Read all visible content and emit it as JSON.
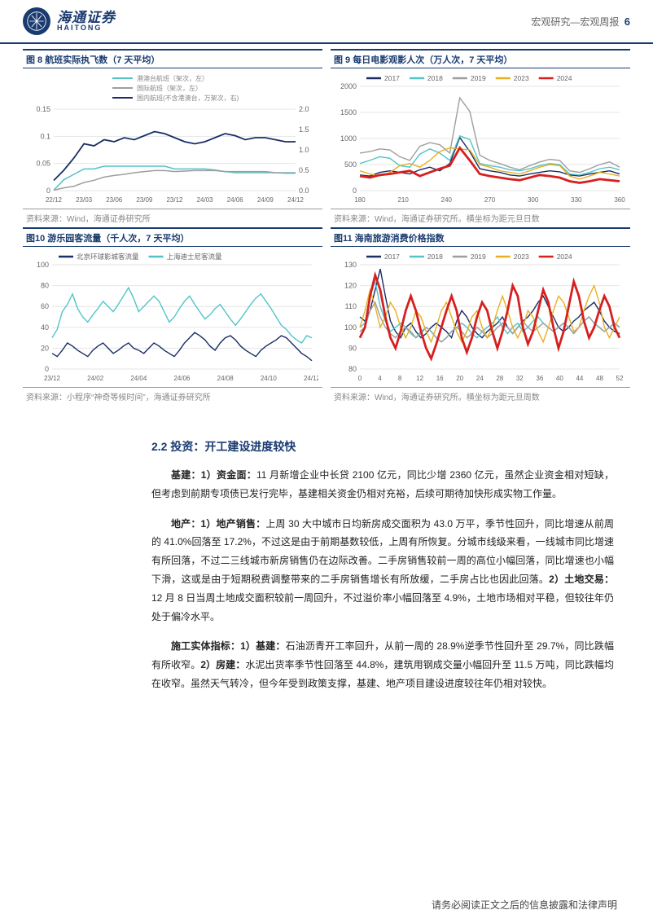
{
  "header": {
    "brand_cn": "海通证券",
    "brand_en": "HAITONG",
    "right_text": "宏观研究—宏观周报",
    "page_num": "6"
  },
  "charts": {
    "c8": {
      "title": "图 8  航班实际执飞数（7 天平均）",
      "source": "资料来源：Wind，海通证券研究所",
      "legend": [
        {
          "label": "港澳台航班（架次，左）",
          "color": "#52c4c9"
        },
        {
          "label": "国际航班（架次，左）",
          "color": "#9e9e9e"
        },
        {
          "label": "国内航班(不含港澳台，万架次，右)",
          "color": "#1a2e66"
        }
      ],
      "y_left": {
        "min": 0,
        "max": 0.15,
        "ticks": [
          0,
          0.05,
          0.1,
          0.15
        ]
      },
      "y_right": {
        "min": 0,
        "max": 2.0,
        "ticks": [
          0,
          0.5,
          1.0,
          1.5,
          2.0
        ]
      },
      "x_labels": [
        "22/12",
        "23/03",
        "23/06",
        "23/09",
        "23/12",
        "24/03",
        "24/06",
        "24/09",
        "24/12"
      ],
      "series": {
        "hk": [
          0.001,
          0.02,
          0.03,
          0.04,
          0.04,
          0.045,
          0.045,
          0.045,
          0.045,
          0.045,
          0.045,
          0.045,
          0.04,
          0.04,
          0.04,
          0.04,
          0.038,
          0.035,
          0.033,
          0.033,
          0.033,
          0.033,
          0.033,
          0.033,
          0.033
        ],
        "intl": [
          0.001,
          0.005,
          0.008,
          0.015,
          0.019,
          0.025,
          0.028,
          0.03,
          0.033,
          0.035,
          0.037,
          0.037,
          0.035,
          0.036,
          0.037,
          0.037,
          0.037,
          0.035,
          0.035,
          0.035,
          0.035,
          0.035,
          0.033,
          0.032,
          0.032
        ],
        "dom_right": [
          0.25,
          0.5,
          0.8,
          1.15,
          1.1,
          1.25,
          1.2,
          1.3,
          1.25,
          1.35,
          1.45,
          1.4,
          1.3,
          1.2,
          1.15,
          1.2,
          1.3,
          1.4,
          1.35,
          1.25,
          1.3,
          1.3,
          1.25,
          1.2,
          1.2
        ]
      },
      "bg": "#ffffff",
      "grid": "#e6e6e6"
    },
    "c9": {
      "title": "图 9  每日电影观影人次（万人次，7 天平均）",
      "source": "资料来源：Wind，海通证券研究所。横坐标为距元旦日数",
      "legend": [
        {
          "label": "2017",
          "color": "#1a2e66"
        },
        {
          "label": "2018",
          "color": "#52c4c9"
        },
        {
          "label": "2019",
          "color": "#9e9e9e"
        },
        {
          "label": "2023",
          "color": "#e8b020"
        },
        {
          "label": "2024",
          "color": "#d62020"
        }
      ],
      "y": {
        "min": 0,
        "max": 2000,
        "ticks": [
          0,
          500,
          1000,
          1500,
          2000
        ]
      },
      "x_labels": [
        180,
        210,
        240,
        270,
        300,
        330,
        360
      ],
      "series": {
        "s2017": [
          300,
          280,
          350,
          380,
          350,
          320,
          400,
          450,
          380,
          520,
          1020,
          750,
          420,
          380,
          350,
          300,
          280,
          320,
          350,
          380,
          360,
          300,
          280,
          320,
          350,
          380,
          320
        ],
        "s2018": [
          520,
          580,
          650,
          620,
          480,
          450,
          700,
          800,
          720,
          580,
          1050,
          980,
          520,
          480,
          450,
          400,
          380,
          420,
          480,
          520,
          500,
          320,
          300,
          350,
          420,
          450,
          400
        ],
        "s2019": [
          720,
          750,
          800,
          780,
          650,
          580,
          850,
          920,
          880,
          720,
          1780,
          1520,
          680,
          580,
          520,
          450,
          400,
          480,
          550,
          600,
          580,
          380,
          350,
          420,
          500,
          550,
          450
        ],
        "s2023": [
          380,
          320,
          280,
          350,
          480,
          520,
          450,
          580,
          750,
          820,
          800,
          780,
          500,
          450,
          380,
          350,
          320,
          380,
          450,
          500,
          480,
          280,
          220,
          280,
          350,
          320,
          280
        ],
        "s2024": [
          280,
          250,
          300,
          320,
          350,
          380,
          280,
          350,
          420,
          480,
          820,
          580,
          320,
          280,
          250,
          220,
          200,
          250,
          300,
          280,
          250,
          180,
          150,
          180,
          220,
          200,
          180
        ]
      },
      "bg": "#ffffff",
      "grid": "#e6e6e6"
    },
    "c10": {
      "title": "图10 游乐园客流量（千人次，7 天平均）",
      "source": "资料来源：小程序“神奇等候时间”，海通证券研究所",
      "legend": [
        {
          "label": "北京环球影城客流量",
          "color": "#1a2e66"
        },
        {
          "label": "上海迪士尼客流量",
          "color": "#52c4c9"
        }
      ],
      "y": {
        "min": 0,
        "max": 100,
        "ticks": [
          0,
          20,
          40,
          60,
          80,
          100
        ]
      },
      "x_labels": [
        "23/12",
        "24/02",
        "24/04",
        "24/06",
        "24/08",
        "24/10",
        "24/12"
      ],
      "series": {
        "bj": [
          15,
          12,
          18,
          25,
          22,
          18,
          15,
          12,
          18,
          22,
          25,
          20,
          15,
          18,
          22,
          25,
          20,
          18,
          15,
          20,
          25,
          22,
          18,
          15,
          12,
          18,
          25,
          30,
          35,
          32,
          28,
          22,
          18,
          25,
          30,
          32,
          28,
          22,
          18,
          15,
          12,
          18,
          22,
          25,
          28,
          32,
          30,
          25,
          20,
          15,
          12,
          8
        ],
        "sh": [
          30,
          38,
          55,
          62,
          72,
          58,
          50,
          45,
          52,
          58,
          65,
          60,
          55,
          62,
          70,
          78,
          68,
          55,
          60,
          65,
          70,
          65,
          55,
          45,
          50,
          58,
          65,
          70,
          62,
          55,
          48,
          52,
          58,
          62,
          55,
          48,
          42,
          48,
          55,
          62,
          68,
          72,
          65,
          58,
          50,
          42,
          38,
          32,
          28,
          25,
          32,
          30
        ]
      },
      "bg": "#ffffff",
      "grid": "#e6e6e6"
    },
    "c11": {
      "title": "图11 海南旅游消费价格指数",
      "source": "资料来源：Wind，海通证券研究所。横坐标为距元旦周数",
      "legend": [
        {
          "label": "2017",
          "color": "#1a2e66"
        },
        {
          "label": "2018",
          "color": "#52c4c9"
        },
        {
          "label": "2019",
          "color": "#9e9e9e"
        },
        {
          "label": "2023",
          "color": "#e8b020"
        },
        {
          "label": "2024",
          "color": "#d62020"
        }
      ],
      "y": {
        "min": 80,
        "max": 130,
        "ticks": [
          80,
          90,
          100,
          110,
          120,
          130
        ]
      },
      "x_labels": [
        0,
        4,
        8,
        12,
        16,
        20,
        24,
        28,
        32,
        36,
        40,
        44,
        48,
        52
      ],
      "series": {
        "s2017": [
          105,
          103,
          108,
          118,
          128,
          115,
          103,
          98,
          95,
          100,
          102,
          98,
          95,
          97,
          100,
          102,
          100,
          98,
          95,
          103,
          108,
          105,
          100,
          97,
          95,
          98,
          100,
          102,
          105,
          100,
          97,
          100,
          103,
          105,
          108,
          112,
          115,
          110,
          105,
          100,
          98,
          100,
          103,
          105,
          108,
          110,
          112,
          108,
          103,
          100,
          98,
          97
        ],
        "s2018": [
          100,
          102,
          115,
          122,
          110,
          103,
          98,
          100,
          102,
          100,
          97,
          95,
          98,
          100,
          98,
          95,
          93,
          95,
          98,
          100,
          102,
          100,
          97,
          95,
          98,
          100,
          102,
          105,
          100,
          97,
          100,
          102,
          98,
          100,
          103,
          105,
          102,
          100,
          98,
          100,
          102,
          100,
          97,
          100,
          103,
          105,
          102,
          100,
          98,
          100,
          102,
          100
        ],
        "s2019": [
          98,
          100,
          108,
          112,
          105,
          100,
          97,
          95,
          98,
          100,
          98,
          95,
          97,
          100,
          98,
          95,
          93,
          95,
          98,
          100,
          98,
          95,
          97,
          100,
          98,
          95,
          97,
          100,
          102,
          100,
          97,
          100,
          103,
          100,
          98,
          100,
          102,
          100,
          98,
          100,
          102,
          100,
          97,
          100,
          103,
          105,
          102,
          100,
          98,
          100,
          102,
          100
        ],
        "s2023": [
          100,
          108,
          118,
          110,
          100,
          105,
          112,
          108,
          100,
          95,
          100,
          108,
          105,
          98,
          93,
          100,
          108,
          112,
          105,
          98,
          93,
          98,
          105,
          108,
          100,
          95,
          100,
          108,
          115,
          108,
          100,
          95,
          100,
          108,
          105,
          98,
          93,
          100,
          108,
          115,
          112,
          105,
          98,
          100,
          108,
          115,
          120,
          112,
          100,
          95,
          100,
          105
        ],
        "s2024": [
          95,
          100,
          115,
          125,
          118,
          105,
          95,
          90,
          98,
          108,
          115,
          108,
          98,
          90,
          85,
          92,
          100,
          108,
          115,
          108,
          95,
          88,
          95,
          105,
          112,
          108,
          98,
          90,
          98,
          108,
          120,
          115,
          100,
          92,
          98,
          108,
          118,
          112,
          100,
          90,
          98,
          110,
          122,
          115,
          103,
          95,
          100,
          108,
          115,
          110,
          100,
          95
        ]
      },
      "bg": "#ffffff",
      "grid": "#e6e6e6"
    }
  },
  "section": {
    "heading": "2.2 投资：开工建设进度较快",
    "p1_lead": "基建：1）资金面：",
    "p1_body": "11 月新增企业中长贷 2100 亿元，同比少增 2360 亿元，虽然企业资金相对短缺，但考虑到前期专项债已发行完毕，基建相关资金仍相对充裕，后续可期待加快形成实物工作量。",
    "p2_lead": "地产：1）地产销售：",
    "p2_body": "上周 30 大中城市日均新房成交面积为 43.0 万平，季节性回升，同比增速从前周的 41.0%回落至 17.2%，不过这是由于前期基数较低，上周有所恢复。分城市线级来看，一线城市同比增速有所回落，不过二三线城市新房销售仍在边际改善。二手房销售较前一周的高位小幅回落，同比增速也小幅下滑，这或是由于短期税费调整带来的二手房销售增长有所放缓，二手房占比也因此回落。",
    "p2_lead2": "2）土地交易：",
    "p2_body2": "12 月 8 日当周土地成交面积较前一周回升，不过溢价率小幅回落至 4.9%，土地市场相对平稳，但较往年仍处于偏冷水平。",
    "p3_lead": "施工实体指标：1）基建：",
    "p3_body": "石油沥青开工率回升，从前一周的 28.9%逆季节性回升至 29.7%，同比跌幅有所收窄。",
    "p3_lead2": "2）房建：",
    "p3_body2": "水泥出货率季节性回落至 44.8%，建筑用钢成交量小幅回升至 11.5 万吨，同比跌幅均在收窄。虽然天气转冷，但今年受到政策支撑，基建、地产项目建设进度较往年仍相对较快。"
  },
  "footer": "请务必阅读正文之后的信息披露和法律声明"
}
